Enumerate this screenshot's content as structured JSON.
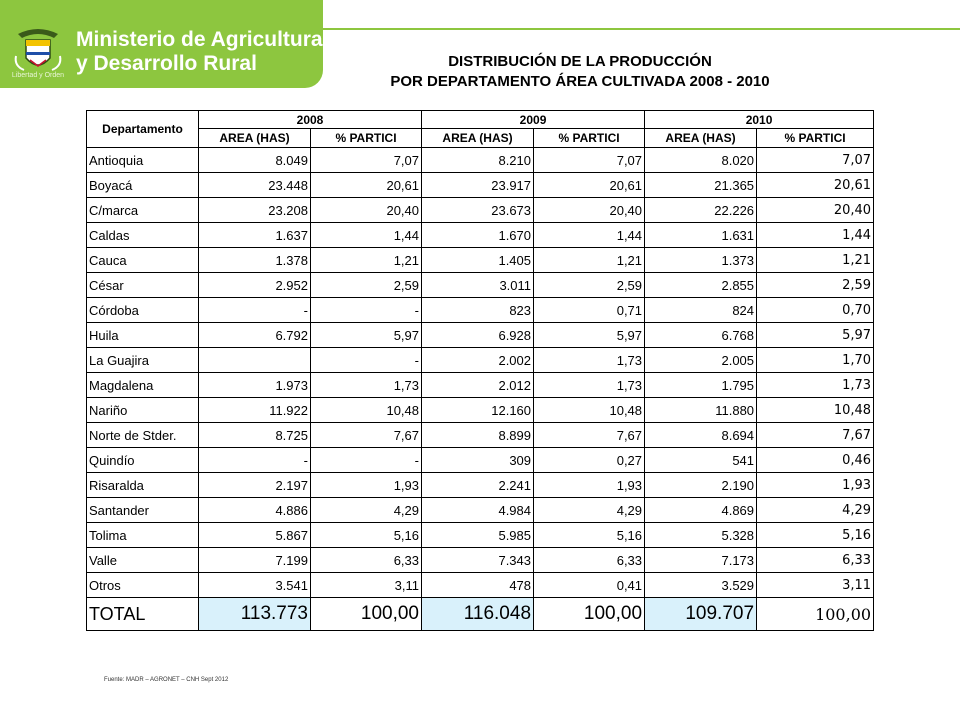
{
  "header": {
    "ministry_line1": "Ministerio de Agricultura",
    "ministry_line2": "y Desarrollo Rural",
    "motto": "Libertad y Orden",
    "accent_color": "#8dc63f"
  },
  "title": {
    "line1": "DISTRIBUCIÓN DE LA PRODUCCIÓN",
    "line2": "POR DEPARTAMENTO ÁREA CULTIVADA 2008 - 2010"
  },
  "table": {
    "dept_header": "Departamento",
    "years": [
      "2008",
      "2009",
      "2010"
    ],
    "sub_headers": [
      "AREA (HAS)",
      "% PARTICI",
      "AREA (HAS)",
      "% PARTICI",
      "AREA (HAS)",
      "% PARTICI"
    ],
    "rows": [
      [
        "Antioquia",
        "8.049",
        "7,07",
        "8.210",
        "7,07",
        "8.020",
        "7,07"
      ],
      [
        "Boyacá",
        "23.448",
        "20,61",
        "23.917",
        "20,61",
        "21.365",
        "20,61"
      ],
      [
        "C/marca",
        "23.208",
        "20,40",
        "23.673",
        "20,40",
        "22.226",
        "20,40"
      ],
      [
        "Caldas",
        "1.637",
        "1,44",
        "1.670",
        "1,44",
        "1.631",
        "1,44"
      ],
      [
        "Cauca",
        "1.378",
        "1,21",
        "1.405",
        "1,21",
        "1.373",
        "1,21"
      ],
      [
        "César",
        "2.952",
        "2,59",
        "3.011",
        "2,59",
        "2.855",
        "2,59"
      ],
      [
        "Córdoba",
        "-",
        "-",
        "823",
        "0,71",
        "824",
        "0,70"
      ],
      [
        "Huila",
        "6.792",
        "5,97",
        "6.928",
        "5,97",
        "6.768",
        "5,97"
      ],
      [
        "La Guajira",
        "",
        "-",
        "2.002",
        "1,73",
        "2.005",
        "1,70"
      ],
      [
        "Magdalena",
        "1.973",
        "1,73",
        "2.012",
        "1,73",
        "1.795",
        "1,73"
      ],
      [
        "Nariño",
        "11.922",
        "10,48",
        "12.160",
        "10,48",
        "11.880",
        "10,48"
      ],
      [
        "Norte de Stder.",
        "8.725",
        "7,67",
        "8.899",
        "7,67",
        "8.694",
        "7,67"
      ],
      [
        "Quindío",
        "-",
        "-",
        "309",
        "0,27",
        "541",
        "0,46"
      ],
      [
        "Risaralda",
        "2.197",
        "1,93",
        "2.241",
        "1,93",
        "2.190",
        "1,93"
      ],
      [
        "Santander",
        "4.886",
        "4,29",
        "4.984",
        "4,29",
        "4.869",
        "4,29"
      ],
      [
        "Tolima",
        "5.867",
        "5,16",
        "5.985",
        "5,16",
        "5.328",
        "5,16"
      ],
      [
        "Valle",
        "7.199",
        "6,33",
        "7.343",
        "6,33",
        "7.173",
        "6,33"
      ],
      [
        "Otros",
        "3.541",
        "3,11",
        "478",
        "0,41",
        "3.529",
        "3,11"
      ]
    ],
    "total": [
      "TOTAL",
      "113.773",
      "100,00",
      "116.048",
      "100,00",
      "109.707",
      "100,00"
    ]
  },
  "source": "Fuente: MADR – AGRONET – CNH Sept 2012"
}
